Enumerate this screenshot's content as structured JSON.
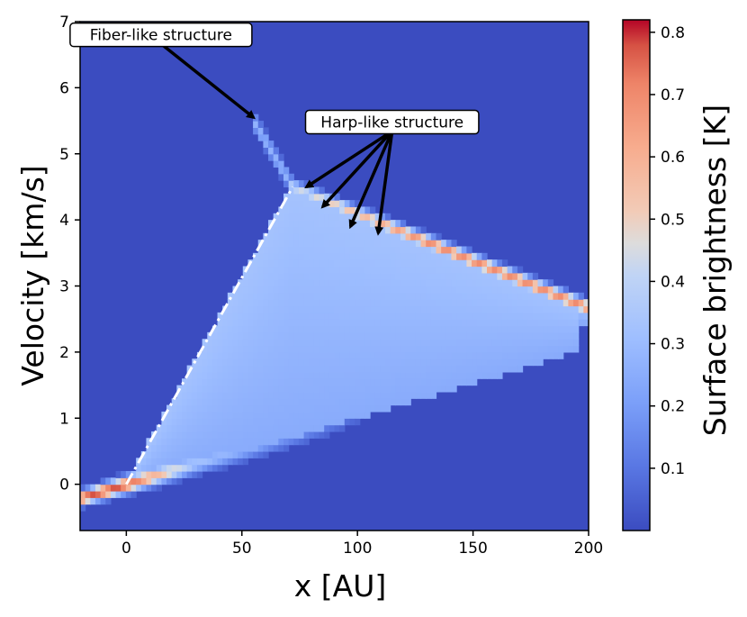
{
  "chart_data": {
    "type": "heatmap",
    "xlabel": "x [AU]",
    "ylabel": "Velocity [km/s]",
    "xlim": [
      -20,
      200
    ],
    "ylim": [
      -0.7,
      7
    ],
    "xticks": [
      "0",
      "50",
      "100",
      "150",
      "200"
    ],
    "yticks": [
      "0",
      "1",
      "2",
      "3",
      "4",
      "5",
      "6",
      "7"
    ],
    "colorbar": {
      "label": "Surface brightness [K]",
      "range": [
        0.0,
        0.82
      ],
      "ticks": [
        "0.1",
        "0.2",
        "0.3",
        "0.4",
        "0.5",
        "0.6",
        "0.7",
        "0.8"
      ],
      "colormap": "coolwarm"
    },
    "background_color": "#3b4cc0",
    "annotations": [
      {
        "text": "Fiber-like structure",
        "label_at": [
          15,
          6.8
        ],
        "arrows_to": [
          [
            55,
            5.55
          ]
        ]
      },
      {
        "text": "Harp-like structure",
        "label_at": [
          115,
          5.48
        ],
        "arrows_to": [
          [
            78,
            4.5
          ],
          [
            85,
            4.2
          ],
          [
            97,
            3.9
          ],
          [
            109,
            3.8
          ]
        ]
      }
    ],
    "reference_line": {
      "style": "dash-dot",
      "color": "#ffffff",
      "from": [
        0,
        0
      ],
      "to": [
        72,
        4.5
      ]
    }
  }
}
